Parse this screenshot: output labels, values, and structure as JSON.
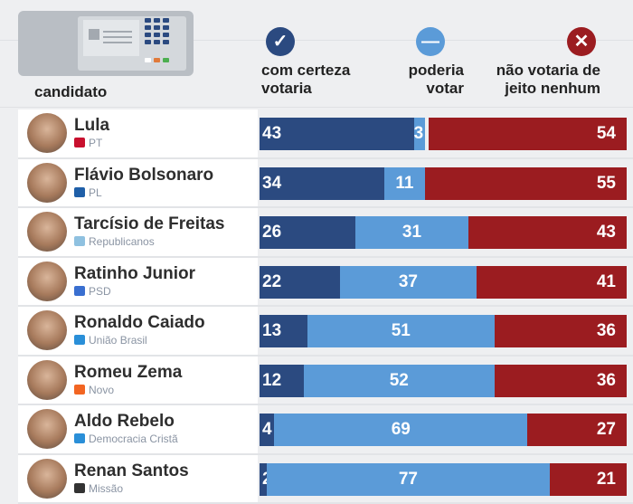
{
  "header": {
    "candidate_label": "candidato",
    "legend": [
      {
        "icon": "check-icon",
        "label_line1": "com certeza",
        "label_line2": "votaria",
        "color": "#2b4a80"
      },
      {
        "icon": "minus-icon",
        "label_line1": "poderia",
        "label_line2": "votar",
        "color": "#5b9bd8"
      },
      {
        "icon": "x-icon",
        "label_line1": "não votaria de",
        "label_line2": "jeito nenhum",
        "color": "#9b1c20"
      }
    ]
  },
  "chart_data": {
    "type": "bar",
    "stacked": true,
    "orientation": "horizontal",
    "categories": [
      "Lula",
      "Flávio Bolsonaro",
      "Tarcísio de Freitas",
      "Ratinho Junior",
      "Ronaldo Caiado",
      "Romeu Zema",
      "Aldo Rebelo",
      "Renan Santos"
    ],
    "parties": [
      "PT",
      "PL",
      "Republicanos",
      "PSD",
      "União Brasil",
      "Novo",
      "Democracia Cristã",
      "Missão"
    ],
    "series": [
      {
        "name": "com certeza votaria",
        "color": "#2b4a80",
        "values": [
          43,
          34,
          26,
          22,
          13,
          12,
          4,
          2
        ]
      },
      {
        "name": "poderia votar",
        "color": "#5b9bd8",
        "values": [
          3,
          11,
          31,
          37,
          51,
          52,
          69,
          77
        ]
      },
      {
        "name": "não votaria de jeito nenhum",
        "color": "#9b1c20",
        "values": [
          54,
          55,
          43,
          41,
          36,
          36,
          27,
          21
        ]
      }
    ],
    "xlim": [
      0,
      100
    ],
    "unit": "%"
  }
}
